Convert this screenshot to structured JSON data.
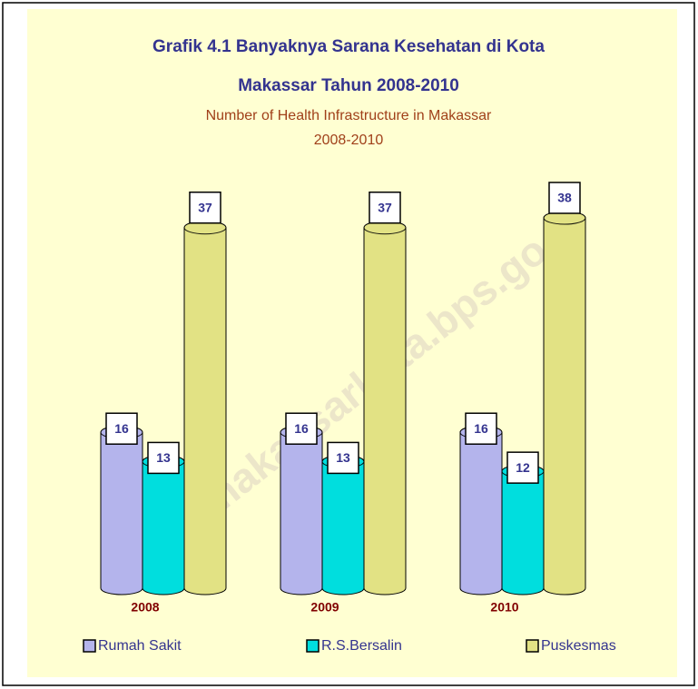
{
  "chart_data": {
    "type": "bar",
    "title": "Grafik 4.1 Banyaknya Sarana Kesehatan di Kota",
    "title_line2": "Makassar Tahun 2008-2010",
    "subtitle": "Number of Health Infrastructure in Makassar",
    "subtitle_line2": "2008-2010",
    "watermark": "http://makassarkota.bps.go.id",
    "categories": [
      "2008",
      "2009",
      "2010"
    ],
    "series": [
      {
        "name": "Rumah Sakit",
        "color": "#b4b4ec",
        "values": [
          16,
          16,
          16
        ]
      },
      {
        "name": "R.S.Bersalin",
        "color": "#00dede",
        "values": [
          13,
          13,
          12
        ]
      },
      {
        "name": "Puskesmas",
        "color": "#e2e284",
        "values": [
          37,
          37,
          38
        ]
      }
    ],
    "legend": "bottom"
  }
}
